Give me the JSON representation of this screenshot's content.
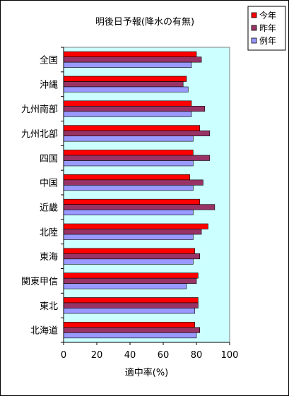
{
  "chart_data": {
    "type": "bar",
    "orientation": "horizontal",
    "title": "明後日予報(降水の有無)",
    "xlabel": "適中率(%)",
    "ylabel": "",
    "xlim": [
      0,
      100
    ],
    "xticks": [
      0,
      20,
      40,
      60,
      80,
      100
    ],
    "grid": false,
    "legend_position": "top-right",
    "plot_background": "#ccffff",
    "categories": [
      "全国",
      "沖縄",
      "九州南部",
      "九州北部",
      "四国",
      "中国",
      "近畿",
      "北陸",
      "東海",
      "関東甲信",
      "東北",
      "北海道"
    ],
    "series": [
      {
        "name": "今年",
        "color": "#ff0000",
        "values": [
          80,
          74,
          77,
          82,
          78,
          76,
          82,
          87,
          79,
          81,
          81,
          79
        ]
      },
      {
        "name": "昨年",
        "color": "#993366",
        "values": [
          83,
          72,
          85,
          88,
          88,
          84,
          91,
          83,
          82,
          80,
          81,
          82
        ]
      },
      {
        "name": "例年",
        "color": "#9999ff",
        "values": [
          77,
          75,
          77,
          78,
          78,
          78,
          78,
          78,
          78,
          74,
          79,
          80
        ]
      }
    ]
  }
}
